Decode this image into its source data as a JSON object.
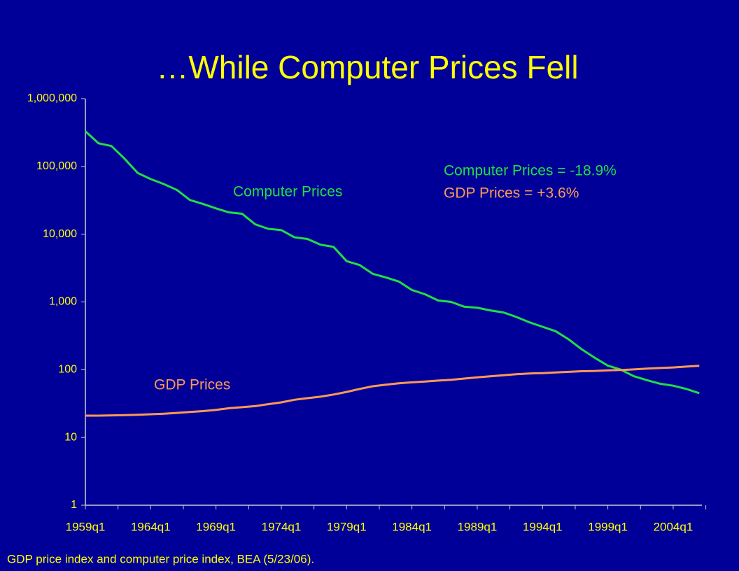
{
  "chart_data": {
    "type": "line",
    "title": "…While Computer Prices Fell",
    "annotations": [
      "Computer Prices",
      "GDP Prices",
      "Computer Prices = -18.9%",
      "GDP Prices = +3.6%"
    ],
    "source": "GDP price index and computer price index, BEA (5/23/06).",
    "categories": [
      "1959q1",
      null,
      null,
      null,
      null,
      "1964q1",
      null,
      null,
      null,
      null,
      "1969q1",
      null,
      null,
      null,
      null,
      "1974q1",
      null,
      null,
      null,
      null,
      "1979q1",
      null,
      null,
      null,
      null,
      "1984q1",
      null,
      null,
      null,
      null,
      "1989q1",
      null,
      null,
      null,
      null,
      "1994q1",
      null,
      null,
      null,
      null,
      "1999q1",
      null,
      null,
      null,
      null,
      "2004q1",
      null,
      null
    ],
    "series": [
      {
        "name": "Computer Prices",
        "color": "#22dd44",
        "values": [
          330000,
          220000,
          200000,
          130000,
          80000,
          65000,
          55000,
          45000,
          32000,
          28000,
          24000,
          21000,
          20000,
          14000,
          12000,
          11500,
          9000,
          8500,
          7000,
          6500,
          4000,
          3500,
          2600,
          2300,
          2000,
          1500,
          1300,
          1050,
          1000,
          850,
          820,
          750,
          700,
          600,
          500,
          430,
          370,
          280,
          200,
          150,
          115,
          100,
          80,
          70,
          62,
          58,
          52,
          45
        ]
      },
      {
        "name": "GDP Prices",
        "color": "#ff9955",
        "values": [
          21,
          21,
          21.2,
          21.4,
          21.6,
          22,
          22.4,
          23,
          23.8,
          24.5,
          25.5,
          27,
          28,
          29,
          31,
          33,
          36,
          38,
          40,
          43,
          47,
          52,
          57,
          60,
          63,
          65,
          67,
          69,
          71,
          74,
          77,
          80,
          83,
          86,
          88,
          89,
          91,
          93,
          95,
          96,
          98,
          99,
          101,
          104,
          106,
          108,
          111,
          114
        ]
      }
    ],
    "ylog": true,
    "ylim": [
      1,
      1000000
    ],
    "yticks": [
      1,
      10,
      100,
      {
        "value": 1000,
        "label": "1,000"
      },
      {
        "value": 10000,
        "label": "10,000"
      },
      {
        "value": 100000,
        "label": "100,000"
      },
      {
        "value": 1000000,
        "label": "1,000,000"
      }
    ]
  }
}
